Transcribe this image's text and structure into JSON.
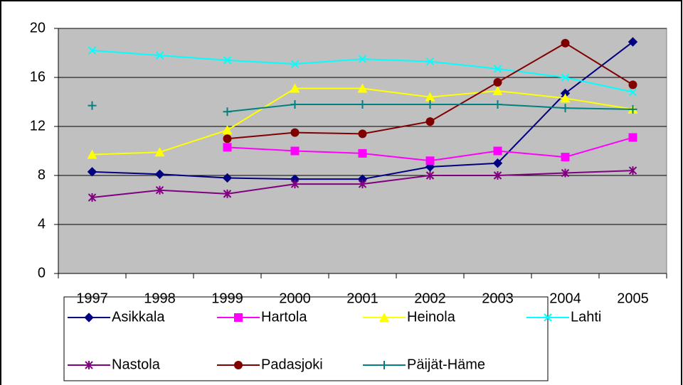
{
  "chart_data": {
    "type": "line",
    "categories": [
      "1997",
      "1998",
      "1999",
      "2000",
      "2001",
      "2002",
      "2003",
      "2004",
      "2005"
    ],
    "series": [
      {
        "name": "Asikkala",
        "color": "#000080",
        "marker": "diamond",
        "values": [
          8.3,
          8.1,
          7.8,
          7.7,
          7.7,
          8.7,
          9.0,
          14.7,
          18.9
        ]
      },
      {
        "name": "Hartola",
        "color": "#ff00ff",
        "marker": "square",
        "values": [
          null,
          null,
          10.3,
          10.0,
          9.8,
          9.2,
          10.0,
          9.5,
          11.1
        ]
      },
      {
        "name": "Heinola",
        "color": "#ffff00",
        "marker": "triangle",
        "values": [
          9.7,
          9.9,
          11.7,
          15.1,
          15.1,
          14.4,
          14.9,
          14.3,
          13.4
        ]
      },
      {
        "name": "Lahti",
        "color": "#00ffff",
        "marker": "x",
        "values": [
          18.2,
          17.8,
          17.4,
          17.1,
          17.5,
          17.3,
          16.7,
          16.0,
          14.8
        ]
      },
      {
        "name": "Nastola",
        "color": "#800080",
        "marker": "star",
        "values": [
          6.2,
          6.8,
          6.5,
          7.3,
          7.3,
          8.0,
          8.0,
          8.2,
          8.4
        ]
      },
      {
        "name": "Padasjoki",
        "color": "#800000",
        "marker": "circle",
        "values": [
          null,
          null,
          11.0,
          11.5,
          11.4,
          12.4,
          15.6,
          18.8,
          15.4
        ]
      },
      {
        "name": "Päijät-Häme",
        "color": "#008080",
        "marker": "plus",
        "values": [
          13.7,
          null,
          13.2,
          13.8,
          13.8,
          13.8,
          13.8,
          13.5,
          13.4
        ]
      }
    ],
    "ylim": [
      0,
      20
    ],
    "yticks": [
      0,
      4,
      8,
      12,
      16,
      20
    ],
    "grid": true
  }
}
